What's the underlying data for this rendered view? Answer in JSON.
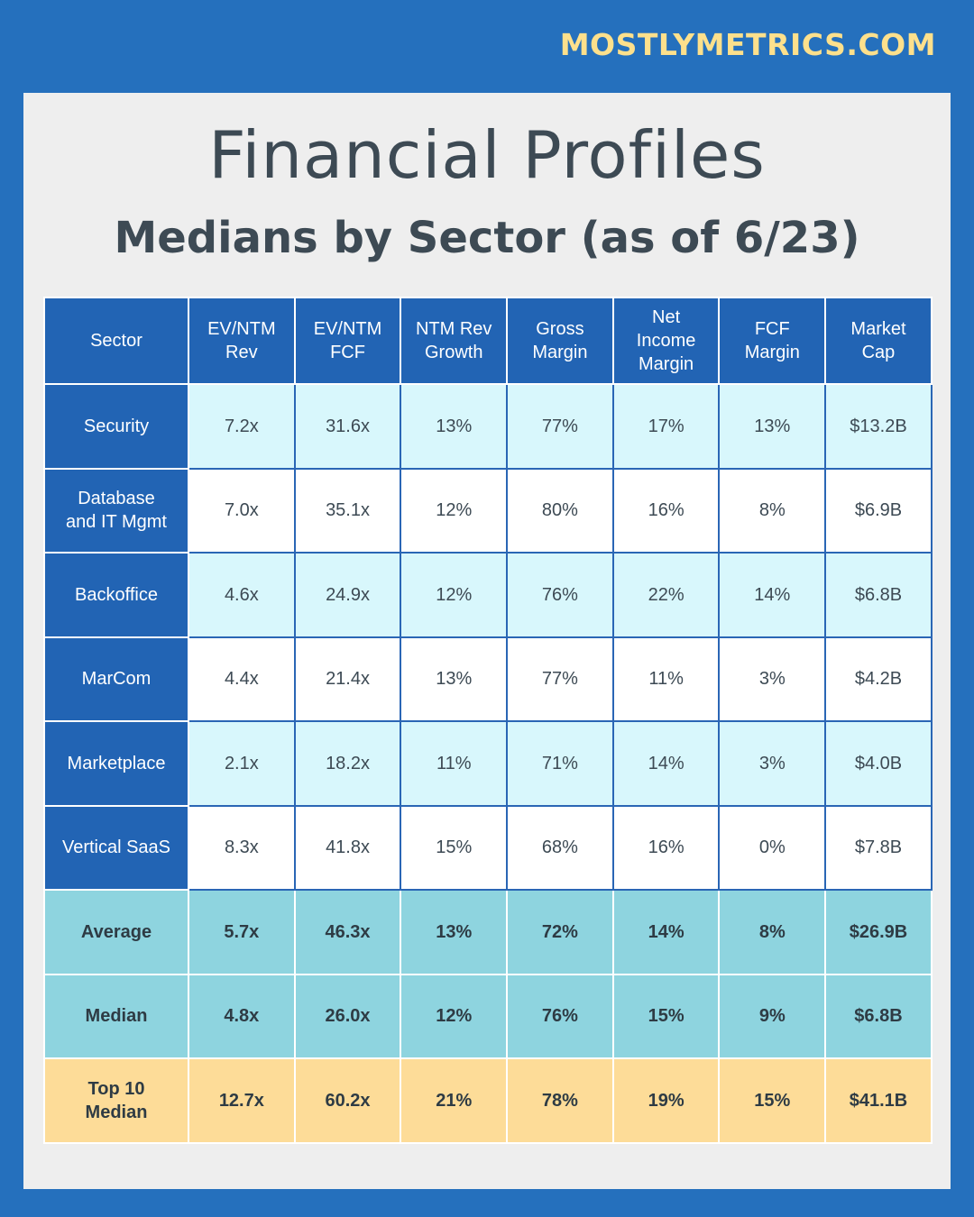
{
  "brand": "MOSTLYMETRICS.COM",
  "title": "Financial Profiles",
  "subtitle": "Medians by Sector (as of 6/23)",
  "colors": {
    "background": "#2570bd",
    "header": "#2264b4",
    "row_light": "#d8f7fc",
    "summary": "#8ed4df",
    "top10": "#fddc98",
    "brand": "#fde08c",
    "text": "#3d4a54"
  },
  "chart_data": {
    "type": "table",
    "columns": [
      "Sector",
      "EV/NTM Rev",
      "EV/NTM FCF",
      "NTM Rev Growth",
      "Gross Margin",
      "Net Income Margin",
      "FCF Margin",
      "Market Cap"
    ],
    "rows": [
      {
        "sector": "Security",
        "values": [
          "7.2x",
          "31.6x",
          "13%",
          "77%",
          "17%",
          "13%",
          "$13.2B"
        ]
      },
      {
        "sector": "Database and IT Mgmt",
        "values": [
          "7.0x",
          "35.1x",
          "12%",
          "80%",
          "16%",
          "8%",
          "$6.9B"
        ]
      },
      {
        "sector": "Backoffice",
        "values": [
          "4.6x",
          "24.9x",
          "12%",
          "76%",
          "22%",
          "14%",
          "$6.8B"
        ]
      },
      {
        "sector": "MarCom",
        "values": [
          "4.4x",
          "21.4x",
          "13%",
          "77%",
          "11%",
          "3%",
          "$4.2B"
        ]
      },
      {
        "sector": "Marketplace",
        "values": [
          "2.1x",
          "18.2x",
          "11%",
          "71%",
          "14%",
          "3%",
          "$4.0B"
        ]
      },
      {
        "sector": "Vertical SaaS",
        "values": [
          "8.3x",
          "41.8x",
          "15%",
          "68%",
          "16%",
          "0%",
          "$7.8B"
        ]
      }
    ],
    "summary_rows": [
      {
        "label": "Average",
        "values": [
          "5.7x",
          "46.3x",
          "13%",
          "72%",
          "14%",
          "8%",
          "$26.9B"
        ],
        "style": "summary"
      },
      {
        "label": "Median",
        "values": [
          "4.8x",
          "26.0x",
          "12%",
          "76%",
          "15%",
          "9%",
          "$6.8B"
        ],
        "style": "summary"
      },
      {
        "label": "Top 10 Median",
        "values": [
          "12.7x",
          "60.2x",
          "21%",
          "78%",
          "19%",
          "15%",
          "$41.1B"
        ],
        "style": "top"
      }
    ]
  }
}
